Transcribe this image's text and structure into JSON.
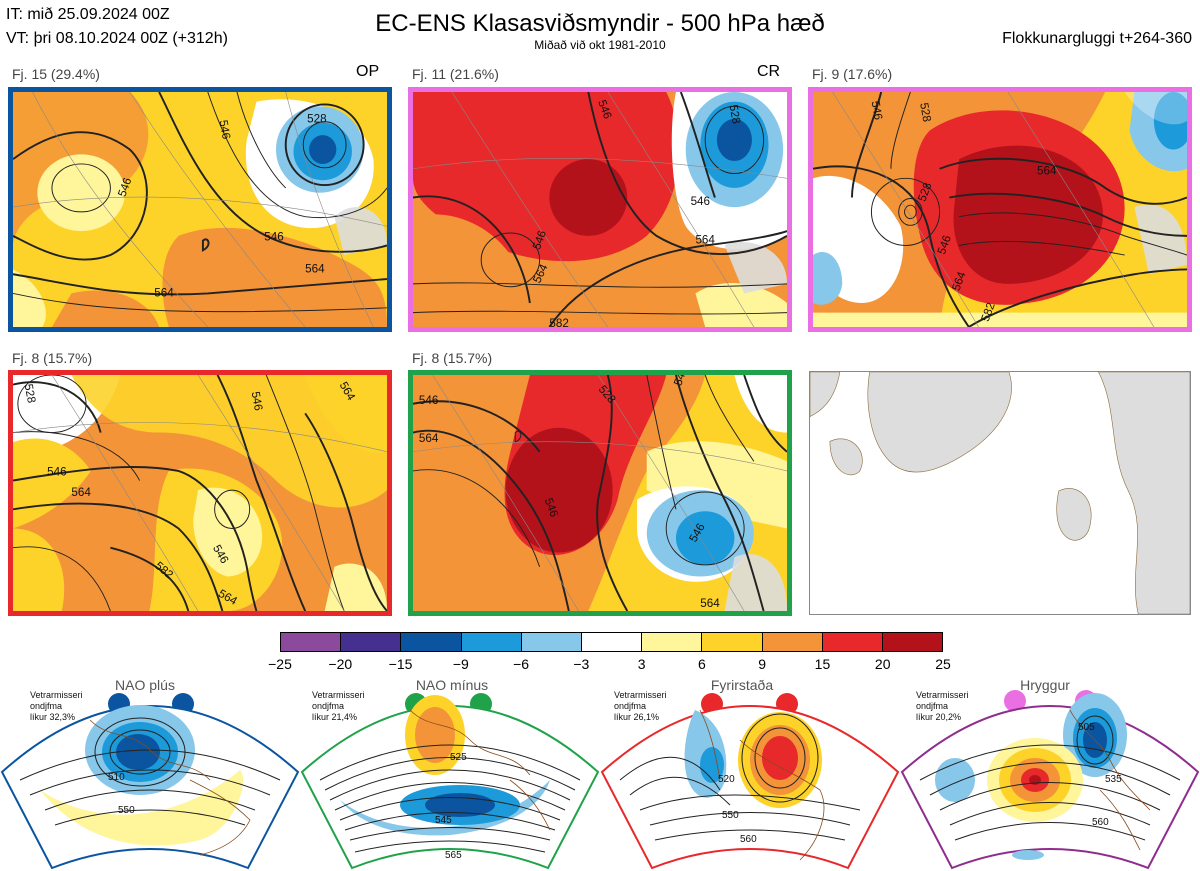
{
  "header": {
    "it_line": "IT: mið 25.09.2024 00Z",
    "vt_line": "VT: þri 08.10.2024 00Z  (+312h)",
    "title": "EC-ENS Klasasviðsmyndir - 500 hPa hæð",
    "subtitle": "Miðað við okt 1981-2010",
    "window": "Flokkunargluggi t+264-360"
  },
  "panels": [
    {
      "label": "Fj. 15 (29.4%)",
      "tag": "OP",
      "border": "#0b55a0",
      "contours": [
        "546",
        "528",
        "546",
        "546",
        "564",
        "564"
      ]
    },
    {
      "label": "Fj. 11 (21.6%)",
      "tag": "CR",
      "border": "#ea6fe3",
      "contours": [
        "546",
        "528",
        "546",
        "564",
        "546",
        "564",
        "582"
      ]
    },
    {
      "label": "Fj. 9 (17.6%)",
      "tag": "",
      "border": "#ea6fe3",
      "contours": [
        "528",
        "546",
        "564",
        "528",
        "546",
        "564",
        "582"
      ]
    },
    {
      "label": "Fj. 8 (15.7%)",
      "tag": "",
      "border": "#e8282a",
      "contours": [
        "528",
        "546",
        "546",
        "564",
        "564",
        "546",
        "582",
        "564"
      ]
    },
    {
      "label": "Fj. 8 (15.7%)",
      "tag": "",
      "border": "#20a24a",
      "contours": [
        "546",
        "528",
        "546",
        "564",
        "546",
        "546",
        "564"
      ]
    }
  ],
  "colorbar": {
    "colors": [
      "#8b4a9c",
      "#46308f",
      "#0b55a0",
      "#1d9ad9",
      "#86c7ea",
      "#ffffff",
      "#fff59a",
      "#fdd32a",
      "#f39438",
      "#e8292b",
      "#b3121b"
    ],
    "ticks": [
      "−25",
      "−20",
      "−15",
      "−9",
      "−6",
      "−3",
      "3",
      "6",
      "9",
      "15",
      "20",
      "25"
    ]
  },
  "regimes": [
    {
      "name": "NAO plús",
      "color": "#0b55a0",
      "season_label": "Vetrarmisseri",
      "mean_label": "ondjfma",
      "prob_label": "líkur 32,3%",
      "contours": [
        "510",
        "550"
      ]
    },
    {
      "name": "NAO mínus",
      "color": "#20a24a",
      "season_label": "Vetrarmisseri",
      "mean_label": "ondjfma",
      "prob_label": "líkur 21,4%",
      "contours": [
        "525",
        "545",
        "565"
      ]
    },
    {
      "name": "Fyrirstaða",
      "color": "#e8282a",
      "season_label": "Vetrarmisseri",
      "mean_label": "ondjfma",
      "prob_label": "líkur 26,1%",
      "contours": [
        "520",
        "550",
        "560"
      ]
    },
    {
      "name": "Hryggur",
      "color": "#ea6fe3",
      "season_label": "Vetrarmisseri",
      "mean_label": "ondjfma",
      "prob_label": "líkur 20,2%",
      "contours": [
        "505",
        "535",
        "560"
      ]
    }
  ]
}
